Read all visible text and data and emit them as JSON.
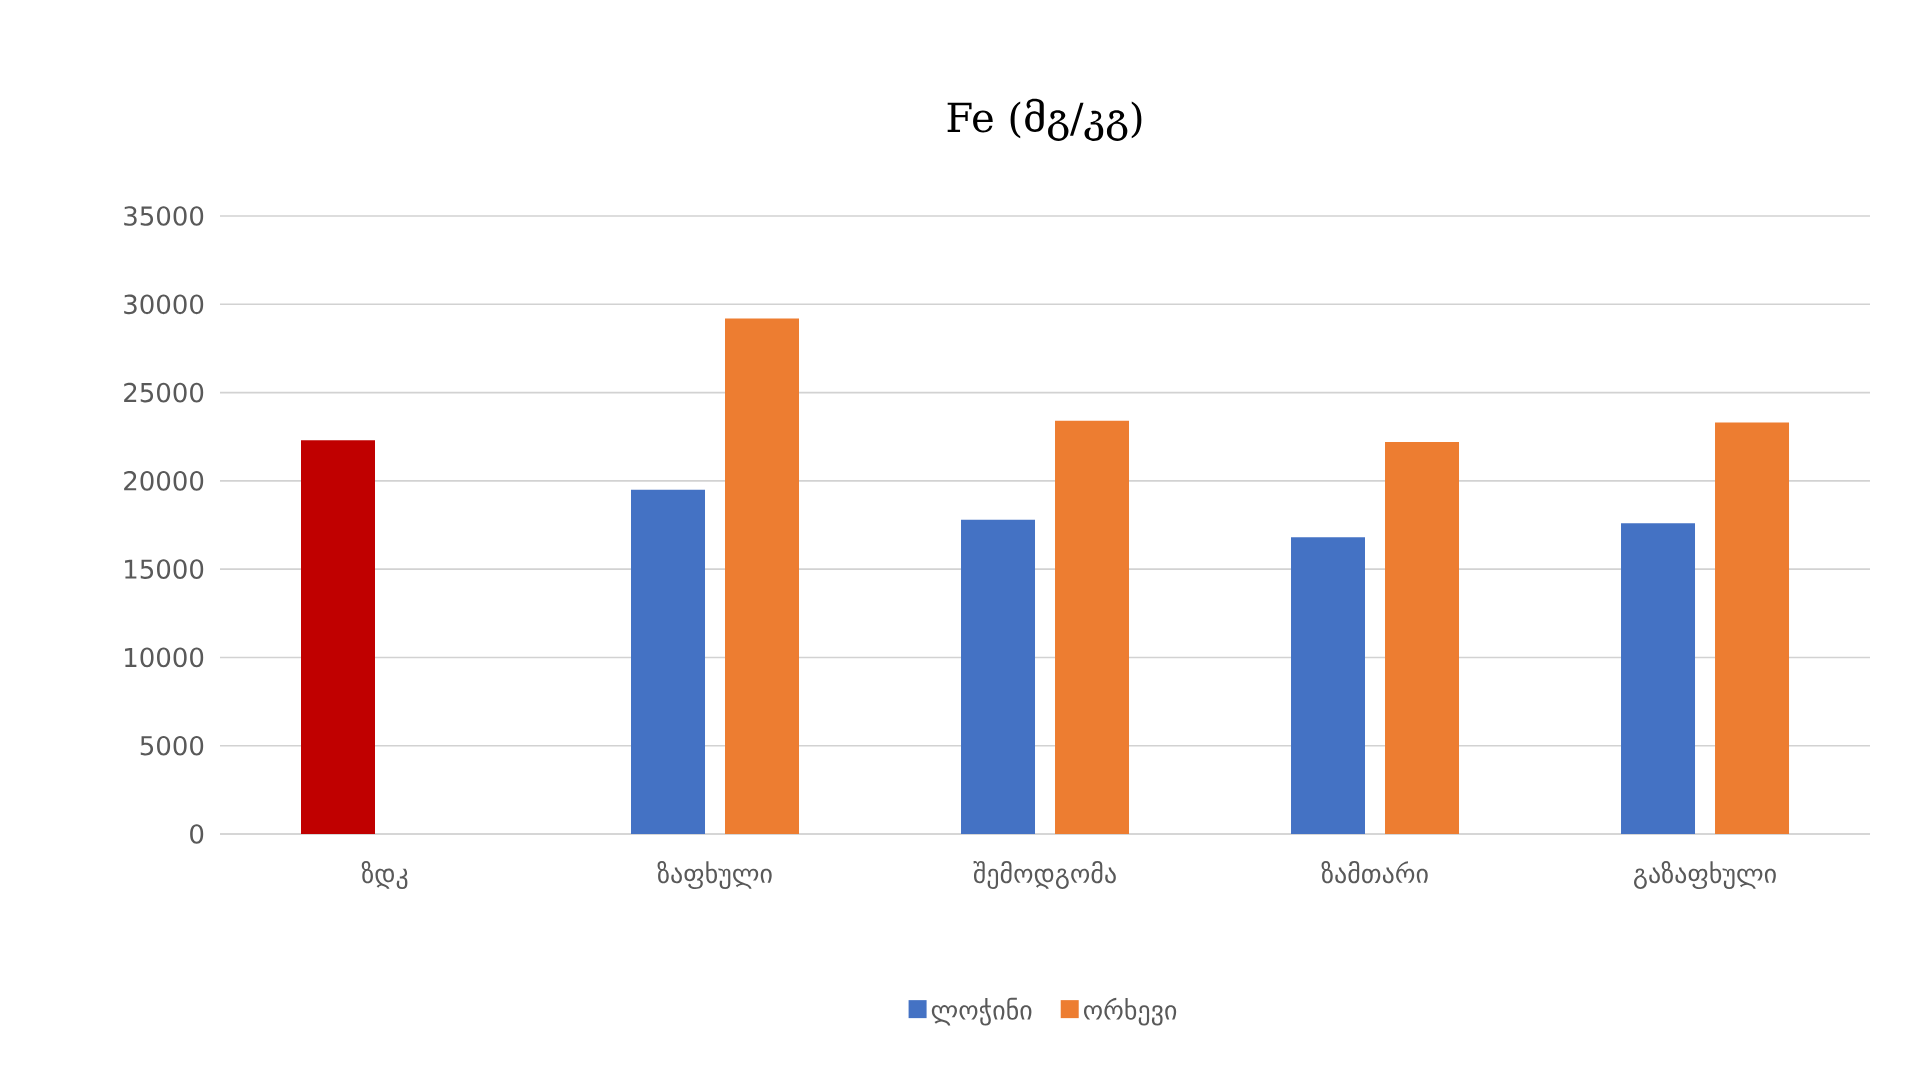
{
  "chart_data": {
    "type": "bar",
    "title": "Fe (მგ/კგ)",
    "categories": [
      "ზდკ",
      "ზაფხული",
      "შემოდგომა",
      "ზამთარი",
      "გაზაფხული"
    ],
    "series": [
      {
        "name": "ლოჭინი",
        "color": "#4472c4",
        "colors": [
          "#c00000",
          "#4472c4",
          "#4472c4",
          "#4472c4",
          "#4472c4"
        ],
        "values": [
          22300,
          19500,
          17800,
          16800,
          17600
        ]
      },
      {
        "name": "ორხევი",
        "color": "#ed7d31",
        "values": [
          null,
          29200,
          23400,
          22200,
          23300
        ]
      }
    ],
    "ylim": [
      0,
      35000
    ],
    "yticks": [
      0,
      5000,
      10000,
      15000,
      20000,
      25000,
      30000,
      35000
    ],
    "grid": "y",
    "legend": "bottom"
  }
}
